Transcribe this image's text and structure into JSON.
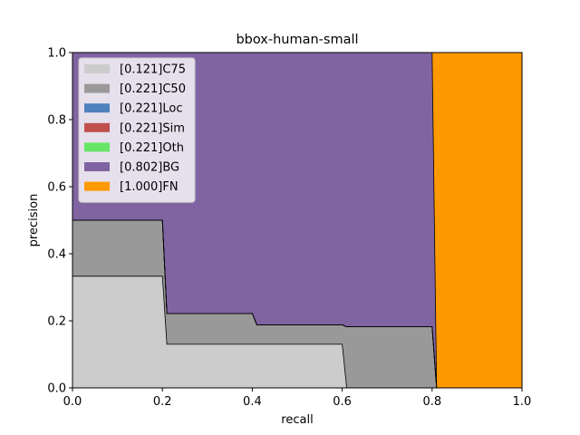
{
  "chart_data": {
    "type": "area",
    "title": "bbox-human-small",
    "xlabel": "recall",
    "ylabel": "precision",
    "xlim": [
      0,
      1
    ],
    "ylim": [
      0,
      1
    ],
    "xticks": [
      "0.0",
      "0.2",
      "0.4",
      "0.6",
      "0.8",
      "1.0"
    ],
    "yticks": [
      "0.0",
      "0.2",
      "0.4",
      "0.6",
      "0.8",
      "1.0"
    ],
    "grid": false,
    "legend_position": "top-left",
    "series": [
      {
        "name": "[0.121]C75",
        "color": "#cccccc",
        "x": [
          0,
          0.2,
          0.21,
          0.6,
          0.61,
          1.0
        ],
        "y": [
          0.333,
          0.333,
          0.13,
          0.13,
          0,
          0
        ]
      },
      {
        "name": "[0.221]C50",
        "color": "#999999",
        "x": [
          0,
          0.2,
          0.21,
          0.4,
          0.41,
          0.6,
          0.61,
          0.8,
          0.81,
          1.0
        ],
        "y": [
          0.5,
          0.5,
          0.222,
          0.222,
          0.188,
          0.188,
          0.182,
          0.182,
          0,
          0
        ]
      },
      {
        "name": "[0.221]Loc",
        "color": "#4f81bd",
        "x": [
          0,
          0.2,
          0.21,
          0.4,
          0.41,
          0.6,
          0.61,
          0.8,
          0.81,
          1.0
        ],
        "y": [
          0.5,
          0.5,
          0.222,
          0.222,
          0.188,
          0.188,
          0.182,
          0.182,
          0,
          0
        ]
      },
      {
        "name": "[0.221]Sim",
        "color": "#c0504d",
        "x": [
          0,
          0.2,
          0.21,
          0.4,
          0.41,
          0.6,
          0.61,
          0.8,
          0.81,
          1.0
        ],
        "y": [
          0.5,
          0.5,
          0.222,
          0.222,
          0.188,
          0.188,
          0.182,
          0.182,
          0,
          0
        ]
      },
      {
        "name": "[0.221]Oth",
        "color": "#66e666",
        "x": [
          0,
          0.2,
          0.21,
          0.4,
          0.41,
          0.6,
          0.61,
          0.8,
          0.81,
          1.0
        ],
        "y": [
          0.5,
          0.5,
          0.222,
          0.222,
          0.188,
          0.188,
          0.182,
          0.182,
          0,
          0
        ]
      },
      {
        "name": "[0.802]BG",
        "color": "#8064a2",
        "x": [
          0,
          0.8,
          0.81,
          1.0
        ],
        "y": [
          1,
          1,
          0,
          0
        ]
      },
      {
        "name": "[1.000]FN",
        "color": "#ff9900",
        "x": [
          0,
          1.0
        ],
        "y": [
          1,
          1
        ]
      }
    ]
  }
}
